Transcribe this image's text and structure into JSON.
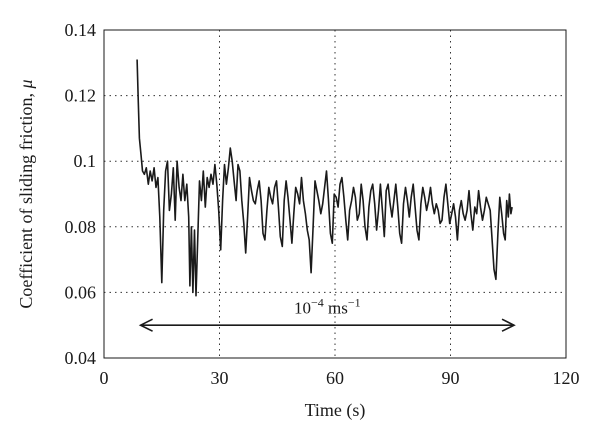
{
  "chart_data": {
    "type": "line",
    "xlabel": "Time (s)",
    "ylabel": "Coefficient of sliding friction, ",
    "ylabel_symbol": "μ",
    "xlim": [
      0,
      120
    ],
    "ylim": [
      0.04,
      0.14
    ],
    "x_ticks": [
      0,
      30,
      60,
      90,
      120
    ],
    "x_tick_labels": [
      "0",
      "30",
      "60",
      "90",
      "120"
    ],
    "y_ticks": [
      0.04,
      0.06,
      0.08,
      0.1,
      0.12,
      0.14
    ],
    "y_tick_labels": [
      "0.04",
      "0.06",
      "0.08",
      "0.1",
      "0.12",
      "0.14"
    ],
    "grid": "dotted",
    "series": [
      {
        "points": [
          [
            8.6,
            0.131
          ],
          [
            8.9,
            0.118
          ],
          [
            9.2,
            0.107
          ],
          [
            9.6,
            0.102
          ],
          [
            10,
            0.097
          ],
          [
            10.5,
            0.096
          ],
          [
            11,
            0.098
          ],
          [
            11.5,
            0.093
          ],
          [
            12,
            0.097
          ],
          [
            12.5,
            0.094
          ],
          [
            13,
            0.098
          ],
          [
            13.5,
            0.092
          ],
          [
            14,
            0.095
          ],
          [
            14.5,
            0.083
          ],
          [
            15,
            0.063
          ],
          [
            15.5,
            0.085
          ],
          [
            16,
            0.097
          ],
          [
            16.5,
            0.1
          ],
          [
            17,
            0.085
          ],
          [
            17.5,
            0.09
          ],
          [
            18,
            0.098
          ],
          [
            18.5,
            0.082
          ],
          [
            19,
            0.1
          ],
          [
            19.5,
            0.092
          ],
          [
            20,
            0.088
          ],
          [
            20.5,
            0.096
          ],
          [
            21,
            0.088
          ],
          [
            21.5,
            0.093
          ],
          [
            22,
            0.083
          ],
          [
            22.3,
            0.062
          ],
          [
            22.7,
            0.08
          ],
          [
            23.1,
            0.06
          ],
          [
            23.5,
            0.079
          ],
          [
            23.9,
            0.059
          ],
          [
            24.3,
            0.075
          ],
          [
            24.8,
            0.094
          ],
          [
            25.3,
            0.088
          ],
          [
            25.8,
            0.097
          ],
          [
            26.3,
            0.086
          ],
          [
            26.8,
            0.095
          ],
          [
            27.3,
            0.092
          ],
          [
            27.8,
            0.096
          ],
          [
            28.3,
            0.093
          ],
          [
            28.8,
            0.099
          ],
          [
            29.3,
            0.093
          ],
          [
            29.8,
            0.085
          ],
          [
            30.3,
            0.073
          ],
          [
            30.8,
            0.088
          ],
          [
            31.3,
            0.099
          ],
          [
            31.8,
            0.093
          ],
          [
            32.3,
            0.098
          ],
          [
            32.8,
            0.104
          ],
          [
            33.3,
            0.1
          ],
          [
            33.8,
            0.094
          ],
          [
            34.3,
            0.088
          ],
          [
            34.8,
            0.099
          ],
          [
            35.3,
            0.097
          ],
          [
            35.8,
            0.088
          ],
          [
            36.3,
            0.081
          ],
          [
            36.8,
            0.072
          ],
          [
            37.3,
            0.083
          ],
          [
            37.8,
            0.095
          ],
          [
            38.3,
            0.091
          ],
          [
            38.8,
            0.088
          ],
          [
            39.3,
            0.087
          ],
          [
            39.8,
            0.091
          ],
          [
            40.3,
            0.094
          ],
          [
            40.8,
            0.088
          ],
          [
            41.3,
            0.078
          ],
          [
            41.8,
            0.076
          ],
          [
            42.3,
            0.085
          ],
          [
            42.8,
            0.092
          ],
          [
            43.3,
            0.089
          ],
          [
            43.8,
            0.087
          ],
          [
            44.3,
            0.092
          ],
          [
            44.8,
            0.094
          ],
          [
            45.3,
            0.086
          ],
          [
            45.8,
            0.077
          ],
          [
            46.3,
            0.074
          ],
          [
            46.8,
            0.088
          ],
          [
            47.3,
            0.094
          ],
          [
            47.8,
            0.089
          ],
          [
            48.3,
            0.082
          ],
          [
            48.8,
            0.075
          ],
          [
            49.3,
            0.084
          ],
          [
            49.8,
            0.092
          ],
          [
            50.3,
            0.09
          ],
          [
            50.8,
            0.087
          ],
          [
            51.3,
            0.095
          ],
          [
            51.8,
            0.088
          ],
          [
            52.3,
            0.084
          ],
          [
            52.8,
            0.079
          ],
          [
            53.3,
            0.076
          ],
          [
            53.8,
            0.066
          ],
          [
            54.3,
            0.08
          ],
          [
            54.8,
            0.094
          ],
          [
            55.3,
            0.091
          ],
          [
            55.8,
            0.088
          ],
          [
            56.3,
            0.084
          ],
          [
            56.8,
            0.087
          ],
          [
            57.3,
            0.092
          ],
          [
            57.8,
            0.097
          ],
          [
            58.3,
            0.088
          ],
          [
            58.8,
            0.078
          ],
          [
            59.3,
            0.075
          ],
          [
            59.8,
            0.09
          ],
          [
            60.3,
            0.089
          ],
          [
            60.8,
            0.086
          ],
          [
            61.3,
            0.093
          ],
          [
            61.8,
            0.095
          ],
          [
            62.3,
            0.089
          ],
          [
            62.8,
            0.082
          ],
          [
            63.3,
            0.076
          ],
          [
            63.8,
            0.085
          ],
          [
            64.3,
            0.088
          ],
          [
            64.8,
            0.092
          ],
          [
            65.3,
            0.089
          ],
          [
            65.8,
            0.082
          ],
          [
            66.3,
            0.084
          ],
          [
            66.8,
            0.093
          ],
          [
            67.3,
            0.088
          ],
          [
            67.8,
            0.08
          ],
          [
            68.3,
            0.076
          ],
          [
            68.8,
            0.086
          ],
          [
            69.3,
            0.091
          ],
          [
            69.8,
            0.093
          ],
          [
            70.3,
            0.087
          ],
          [
            70.8,
            0.079
          ],
          [
            71.3,
            0.085
          ],
          [
            71.8,
            0.093
          ],
          [
            72.3,
            0.085
          ],
          [
            72.8,
            0.077
          ],
          [
            73.3,
            0.091
          ],
          [
            73.8,
            0.093
          ],
          [
            74.3,
            0.087
          ],
          [
            74.8,
            0.083
          ],
          [
            75.3,
            0.088
          ],
          [
            75.8,
            0.093
          ],
          [
            76.3,
            0.086
          ],
          [
            76.8,
            0.078
          ],
          [
            77.3,
            0.075
          ],
          [
            77.8,
            0.087
          ],
          [
            78.3,
            0.092
          ],
          [
            78.8,
            0.088
          ],
          [
            79.3,
            0.083
          ],
          [
            79.8,
            0.089
          ],
          [
            80.3,
            0.093
          ],
          [
            80.8,
            0.086
          ],
          [
            81.3,
            0.079
          ],
          [
            81.8,
            0.076
          ],
          [
            82.3,
            0.087
          ],
          [
            82.8,
            0.092
          ],
          [
            83.3,
            0.089
          ],
          [
            83.8,
            0.085
          ],
          [
            84.3,
            0.088
          ],
          [
            84.8,
            0.092
          ],
          [
            85.3,
            0.087
          ],
          [
            85.8,
            0.084
          ],
          [
            86.3,
            0.087
          ],
          [
            86.8,
            0.085
          ],
          [
            87.3,
            0.081
          ],
          [
            87.8,
            0.082
          ],
          [
            88.3,
            0.089
          ],
          [
            88.8,
            0.093
          ],
          [
            89.3,
            0.087
          ],
          [
            89.8,
            0.081
          ],
          [
            90.3,
            0.084
          ],
          [
            90.8,
            0.087
          ],
          [
            91.3,
            0.083
          ],
          [
            91.8,
            0.076
          ],
          [
            92.3,
            0.085
          ],
          [
            92.8,
            0.088
          ],
          [
            93.3,
            0.084
          ],
          [
            93.8,
            0.082
          ],
          [
            94.3,
            0.085
          ],
          [
            94.8,
            0.091
          ],
          [
            95.3,
            0.084
          ],
          [
            95.8,
            0.079
          ],
          [
            96.3,
            0.086
          ],
          [
            96.8,
            0.084
          ],
          [
            97.3,
            0.091
          ],
          [
            97.8,
            0.086
          ],
          [
            98.3,
            0.082
          ],
          [
            98.8,
            0.085
          ],
          [
            99.3,
            0.089
          ],
          [
            99.8,
            0.087
          ],
          [
            100.3,
            0.085
          ],
          [
            100.8,
            0.076
          ],
          [
            101.3,
            0.067
          ],
          [
            101.8,
            0.064
          ],
          [
            102.3,
            0.078
          ],
          [
            102.8,
            0.089
          ],
          [
            103.3,
            0.084
          ],
          [
            103.8,
            0.078
          ],
          [
            104.2,
            0.076
          ],
          [
            104.6,
            0.088
          ],
          [
            105,
            0.083
          ],
          [
            105.3,
            0.09
          ],
          [
            105.7,
            0.084
          ],
          [
            106,
            0.086
          ]
        ]
      }
    ],
    "annotations": [
      {
        "text_base": "10",
        "text_exp1": "−4",
        "text_unit": " ms",
        "text_exp2": "−1",
        "arrow_x_range": [
          9.5,
          106.5
        ],
        "arrow_y": 0.05,
        "text_y": 0.0535
      }
    ]
  }
}
